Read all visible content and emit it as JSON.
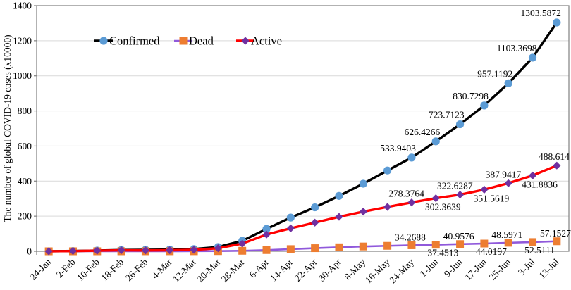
{
  "figure": {
    "description": "Line chart of global COVID-19 cases over time"
  },
  "chart_data": {
    "type": "line",
    "title": "",
    "xlabel": "",
    "ylabel": "The number of global COVID-19 cases (x10000)",
    "ylim": [
      0,
      1400
    ],
    "yticks": [
      0,
      200,
      400,
      600,
      800,
      1000,
      1200,
      1400
    ],
    "grid": "horizontal",
    "grid_color": "#d9d9d9",
    "frame_color": "#808080",
    "legend_position": "inside-top-left",
    "categories": [
      "24-Jan",
      "2-Feb",
      "10-Feb",
      "18-Feb",
      "26-Feb",
      "4-Mar",
      "12-Mar",
      "20-Mar",
      "28-Mar",
      "6-Apr",
      "14-Apr",
      "22-Apr",
      "30-Apr",
      "8-May",
      "16-May",
      "24-May",
      "1-Jun",
      "9-Jun",
      "17-Jun",
      "25-Jun",
      "3-Jul",
      "13-Jul"
    ],
    "series": [
      {
        "name": "Confirmed",
        "line_color": "#000000",
        "marker": "circle",
        "marker_color": "#5b9bd5",
        "line_width": 3.4,
        "values": [
          0.09,
          1.5,
          4.1,
          7.3,
          8.1,
          9.5,
          12.6,
          24.4,
          59.7,
          127.3,
          192.0,
          250.4,
          315.5,
          385.0,
          460.5,
          533.9403,
          626.4266,
          723.7123,
          830.7298,
          957.1192,
          1103.3698,
          1303.5872
        ],
        "point_labels": [
          {
            "index": 15,
            "text": "533.9403",
            "pos": "above"
          },
          {
            "index": 16,
            "text": "626.4266",
            "pos": "above"
          },
          {
            "index": 17,
            "text": "723.7123",
            "pos": "above"
          },
          {
            "index": 18,
            "text": "830.7298",
            "pos": "above"
          },
          {
            "index": 19,
            "text": "957.1192",
            "pos": "above"
          },
          {
            "index": 20,
            "text": "1103.3698",
            "pos": "above"
          },
          {
            "index": 21,
            "text": "1303.5872",
            "pos": "above"
          }
        ]
      },
      {
        "name": "Dead",
        "line_color": "#9059db",
        "marker": "square",
        "marker_color": "#ed7d31",
        "line_width": 2.6,
        "values": [
          0.01,
          0.04,
          0.09,
          0.2,
          0.27,
          0.33,
          0.47,
          1.15,
          2.97,
          7.0,
          12.4,
          17.8,
          22.8,
          27.4,
          31.1,
          34.2688,
          37.4513,
          40.9576,
          44.0197,
          48.5971,
          52.5111,
          57.1527
        ],
        "point_labels": [
          {
            "index": 15,
            "text": "34.2688",
            "pos": "above"
          },
          {
            "index": 16,
            "text": "37.4513",
            "pos": "below"
          },
          {
            "index": 17,
            "text": "40.9576",
            "pos": "above"
          },
          {
            "index": 18,
            "text": "44.0197",
            "pos": "below"
          },
          {
            "index": 19,
            "text": "48.5971",
            "pos": "above"
          },
          {
            "index": 20,
            "text": "52.5111",
            "pos": "below"
          },
          {
            "index": 21,
            "text": "57.1527",
            "pos": "above"
          }
        ]
      },
      {
        "name": "Active",
        "line_color": "#ff0000",
        "marker": "diamond",
        "marker_color": "#7030a0",
        "line_width": 3.4,
        "values": [
          0.08,
          1.4,
          3.6,
          5.8,
          5.0,
          6.0,
          8.5,
          17.5,
          43.8,
          95.5,
          130.8,
          163.6,
          196.4,
          226.0,
          252.7,
          278.3764,
          302.3639,
          322.6287,
          351.5619,
          387.9417,
          431.8836,
          488.614
        ],
        "point_labels": [
          {
            "index": 15,
            "text": "278.3764",
            "pos": "above"
          },
          {
            "index": 16,
            "text": "302.3639",
            "pos": "below"
          },
          {
            "index": 17,
            "text": "322.6287",
            "pos": "above"
          },
          {
            "index": 18,
            "text": "351.5619",
            "pos": "below"
          },
          {
            "index": 19,
            "text": "387.9417",
            "pos": "above"
          },
          {
            "index": 20,
            "text": "431.8836",
            "pos": "below"
          },
          {
            "index": 21,
            "text": "488.614",
            "pos": "above"
          }
        ]
      }
    ]
  }
}
